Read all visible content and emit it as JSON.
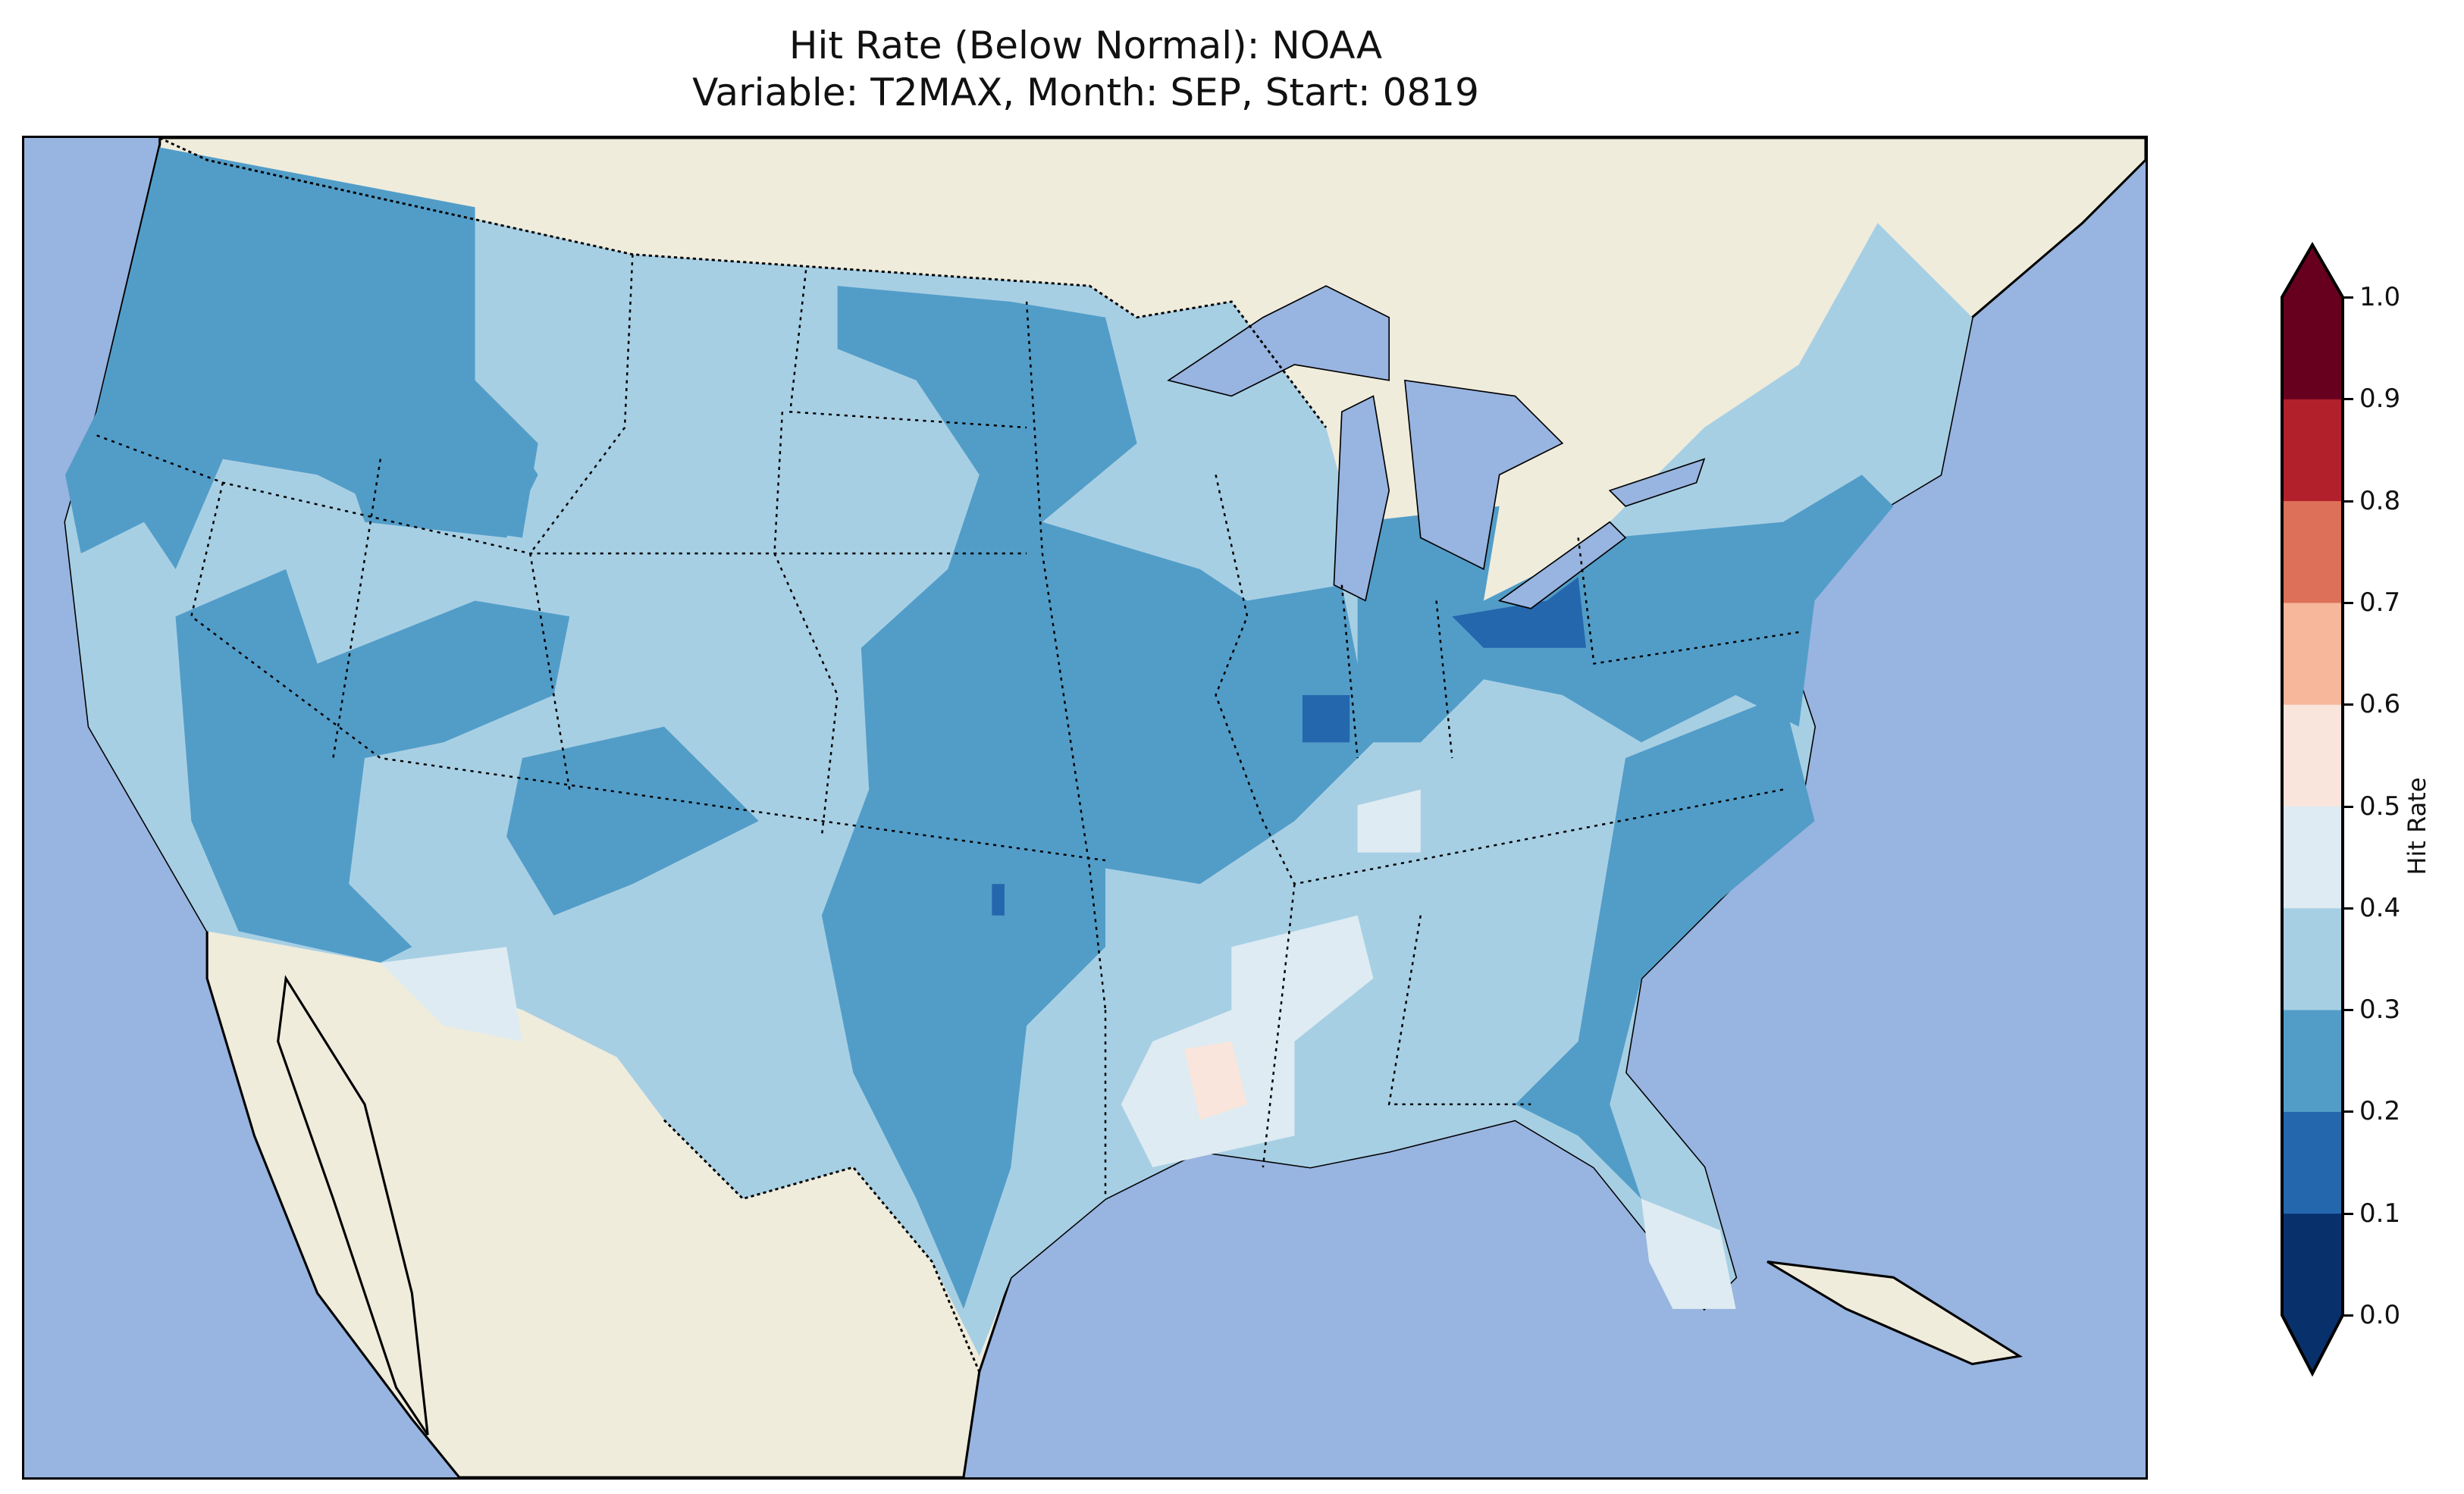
{
  "title": {
    "line1": "Hit Rate (Below Normal): NOAA",
    "line2": "Variable: T2MAX, Month: SEP, Start: 0819"
  },
  "map": {
    "ocean_color": "#98b4e0",
    "land_color": "#efecdc",
    "lakes_color": "#98b4e0"
  },
  "colorbar": {
    "label": "Hit Rate",
    "ticks": [
      "0.0",
      "0.1",
      "0.2",
      "0.3",
      "0.4",
      "0.5",
      "0.6",
      "0.7",
      "0.8",
      "0.9",
      "1.0"
    ],
    "colors": [
      "#08306b",
      "#2567ad",
      "#529dc8",
      "#a7cfe4",
      "#deebf2",
      "#f9e5dc",
      "#f6b79a",
      "#dd7059",
      "#b2202c",
      "#67001f"
    ],
    "extend": "both"
  }
}
